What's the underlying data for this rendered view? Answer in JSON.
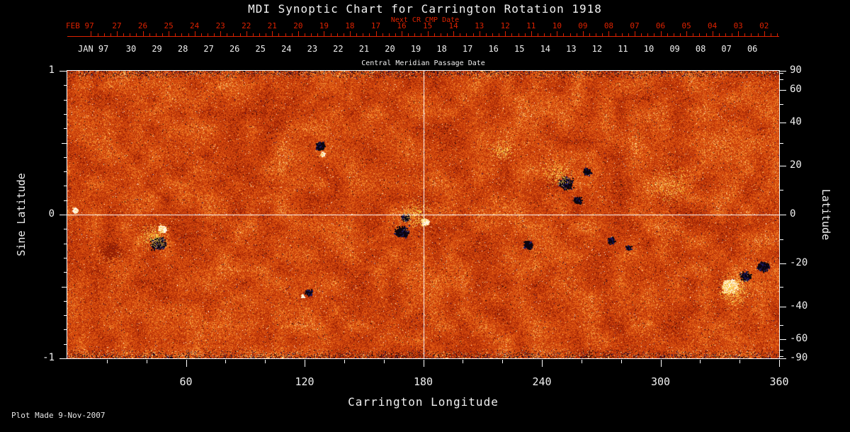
{
  "title": "MDI Synoptic Chart for Carrington Rotation 1918",
  "subtitle_red": "Next CR CMP Date",
  "cmp_axis": {
    "feb_label": "FEB 97",
    "feb_days": [
      "27",
      "26",
      "25",
      "24",
      "23",
      "22",
      "21",
      "20",
      "19",
      "18",
      "17",
      "16",
      "15",
      "14",
      "13",
      "12",
      "11",
      "10",
      "09",
      "08",
      "07",
      "06",
      "05",
      "04",
      "03",
      "02"
    ],
    "jan_label": "JAN 97",
    "jan_days": [
      "30",
      "29",
      "28",
      "27",
      "26",
      "25",
      "24",
      "23",
      "22",
      "21",
      "20",
      "19",
      "18",
      "17",
      "16",
      "15",
      "14",
      "13",
      "12",
      "11",
      "10",
      "09",
      "08",
      "07",
      "06"
    ],
    "caption": "Central Meridian Passage Date"
  },
  "left_axis": {
    "label": "Sine Latitude",
    "ticks": [
      {
        "value": 1,
        "label": "1"
      },
      {
        "value": 0,
        "label": "0"
      },
      {
        "value": -1,
        "label": "-1"
      }
    ]
  },
  "right_axis": {
    "label": "Latitude",
    "ticks": [
      {
        "value": 90,
        "label": "90"
      },
      {
        "value": 60,
        "label": "60"
      },
      {
        "value": 40,
        "label": "40"
      },
      {
        "value": 20,
        "label": "20"
      },
      {
        "value": 0,
        "label": "0"
      },
      {
        "value": -20,
        "label": "-20"
      },
      {
        "value": -40,
        "label": "-40"
      },
      {
        "value": -60,
        "label": "-60"
      },
      {
        "value": -90,
        "label": "-90"
      }
    ]
  },
  "bottom_axis": {
    "label": "Carrington Longitude",
    "ticks": [
      {
        "value": 60,
        "label": "60"
      },
      {
        "value": 120,
        "label": "120"
      },
      {
        "value": 180,
        "label": "180"
      },
      {
        "value": 240,
        "label": "240"
      },
      {
        "value": 300,
        "label": "300"
      },
      {
        "value": 360,
        "label": "360"
      }
    ]
  },
  "footer": "Plot Made  9-Nov-2007",
  "colors": {
    "background": "#000000",
    "foreground": "#f0f0f0",
    "cmp_red": "#dd2200",
    "magnetogram_base_orange": "#d84a10",
    "magnetogram_positive": "#fff8e6",
    "magnetogram_negative": "#0a040e"
  },
  "chart_data": {
    "type": "heatmap",
    "title": "MDI Synoptic Chart for Carrington Rotation 1918",
    "description": "Full-disk solar magnetic field synoptic map for Carrington rotation 1918. Granular orange/red background noise with dark (negative polarity) and bright/white (positive polarity) active regions; white crosshair at longitude 180 and sine latitude 0.",
    "x_axis": {
      "label": "Carrington Longitude",
      "range": [
        0,
        360
      ]
    },
    "y_axis": {
      "label": "Sine Latitude",
      "range": [
        -1,
        1
      ]
    },
    "right_axis": {
      "label": "Latitude",
      "range": [
        -90,
        90
      ],
      "scale": "sine"
    },
    "crosshair": {
      "longitude": 180,
      "sine_latitude": 0
    },
    "noise_seed": 1918,
    "features": [
      {
        "lon": 4,
        "slat": 0.03,
        "polarity": "positive",
        "r": 5,
        "density": 4
      },
      {
        "lon": 46,
        "slat": -0.2,
        "polarity": "negative",
        "r": 13,
        "density": 3.2
      },
      {
        "lon": 48,
        "slat": -0.1,
        "polarity": "positive",
        "r": 7,
        "density": 3.5
      },
      {
        "lon": 44,
        "slat": -0.15,
        "polarity": "plage",
        "r": 28,
        "density": 0.5
      },
      {
        "lon": 22,
        "slat": -0.26,
        "polarity": "dark-diffuse",
        "r": 24,
        "density": 0.7
      },
      {
        "lon": 128,
        "slat": 0.48,
        "polarity": "negative",
        "r": 8,
        "density": 3.2
      },
      {
        "lon": 129,
        "slat": 0.42,
        "polarity": "positive",
        "r": 4,
        "density": 2.5
      },
      {
        "lon": 122,
        "slat": -0.54,
        "polarity": "negative",
        "r": 6,
        "density": 3
      },
      {
        "lon": 119,
        "slat": -0.57,
        "polarity": "positive",
        "r": 3,
        "density": 3
      },
      {
        "lon": 169,
        "slat": -0.12,
        "polarity": "negative",
        "r": 11,
        "density": 2.8
      },
      {
        "lon": 171,
        "slat": -0.02,
        "polarity": "negative",
        "r": 7,
        "density": 2.2
      },
      {
        "lon": 181,
        "slat": -0.05,
        "polarity": "positive",
        "r": 7,
        "density": 3.2
      },
      {
        "lon": 176,
        "slat": 0.0,
        "polarity": "plage",
        "r": 30,
        "density": 0.45
      },
      {
        "lon": 220,
        "slat": 0.45,
        "polarity": "plage",
        "r": 24,
        "density": 0.45
      },
      {
        "lon": 233,
        "slat": -0.21,
        "polarity": "negative",
        "r": 8,
        "density": 2.6
      },
      {
        "lon": 252,
        "slat": 0.22,
        "polarity": "negative",
        "r": 12,
        "density": 2.8
      },
      {
        "lon": 258,
        "slat": 0.1,
        "polarity": "negative",
        "r": 8,
        "density": 1.6
      },
      {
        "lon": 263,
        "slat": 0.3,
        "polarity": "negative",
        "r": 7,
        "density": 1.8
      },
      {
        "lon": 248,
        "slat": 0.28,
        "polarity": "plage",
        "r": 30,
        "density": 0.4
      },
      {
        "lon": 275,
        "slat": -0.18,
        "polarity": "negative",
        "r": 7,
        "density": 2.2
      },
      {
        "lon": 284,
        "slat": -0.23,
        "polarity": "negative",
        "r": 5,
        "density": 2.2
      },
      {
        "lon": 305,
        "slat": 0.2,
        "polarity": "plage",
        "r": 45,
        "density": 0.22
      },
      {
        "lon": 335,
        "slat": -0.5,
        "polarity": "positive",
        "r": 13,
        "density": 4
      },
      {
        "lon": 343,
        "slat": -0.43,
        "polarity": "negative",
        "r": 9,
        "density": 2.8
      },
      {
        "lon": 352,
        "slat": -0.36,
        "polarity": "negative",
        "r": 10,
        "density": 2.6
      },
      {
        "lon": 337,
        "slat": -0.52,
        "polarity": "plage",
        "r": 30,
        "density": 0.6
      }
    ]
  }
}
